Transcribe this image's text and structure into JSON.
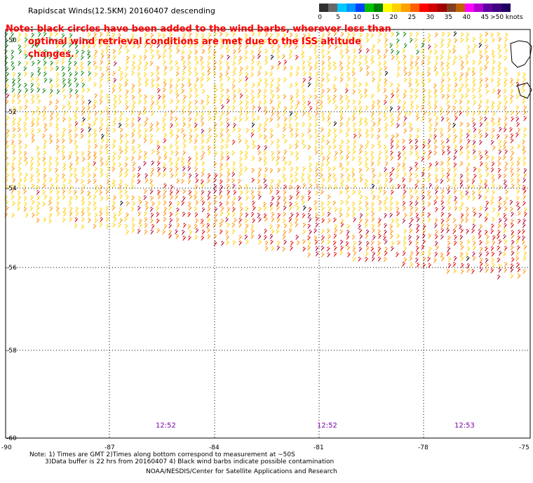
{
  "header": {
    "title": "Rapidscat Winds(12.5KM) 20160407 descending",
    "note_line1": "Note: black circles have been added to the wind barbs, wherever less than",
    "note_line2": "optimal wind retrieval conditions are met due to the ISS altitude changes."
  },
  "colorbar": {
    "unit": "knots",
    "labels": [
      "0",
      "5",
      "10",
      "15",
      "20",
      "25",
      "30",
      "35",
      "40",
      "45",
      ">50 knots"
    ],
    "colors": [
      "#303030",
      "#686868",
      "#00c8ff",
      "#0096ff",
      "#0040ff",
      "#00c000",
      "#008000",
      "#ffff00",
      "#ffd000",
      "#ffa000",
      "#ff6000",
      "#ff0000",
      "#d00000",
      "#a00000",
      "#804020",
      "#c06000",
      "#ff00ff",
      "#b000d0",
      "#6000a0",
      "#400080",
      "#200060"
    ]
  },
  "map": {
    "lat_labels": [
      "-50",
      "-52",
      "-54",
      "-56",
      "-58",
      "-60"
    ],
    "lon_labels": [
      "-90",
      "-87",
      "-84",
      "-81",
      "-78",
      "-75"
    ],
    "time_labels": [
      "12:52",
      "12:52",
      "12:53"
    ]
  },
  "footer": {
    "notes_line1": "Note: 1) Times are GMT 2)Times along bottom correspond to measurement at ~50S",
    "notes_line2": "3)Data buffer is 22 hrs from 20160407 4) Black wind barbs indicate possible contamination",
    "credit": "NOAA/NESDIS/Center for Satellite Applications and Research"
  }
}
